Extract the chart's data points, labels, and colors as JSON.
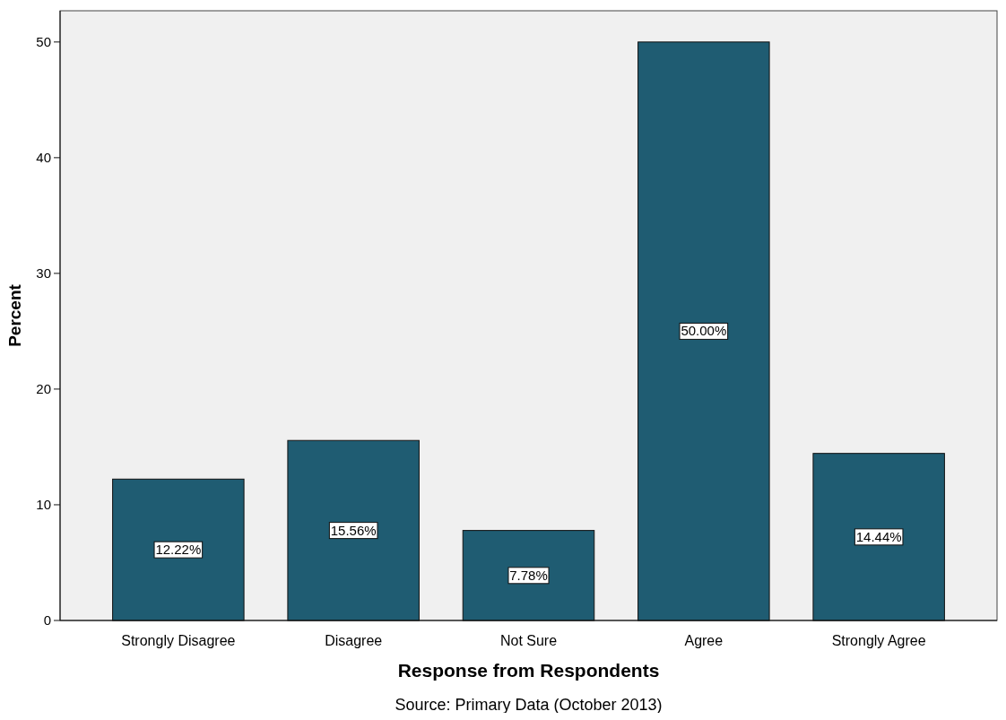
{
  "chart_data": {
    "type": "bar",
    "xlabel": "Response from Respondents",
    "ylabel": "Percent",
    "categories": [
      "Strongly Disagree",
      "Disagree",
      "Not Sure",
      "Agree",
      "Strongly Agree"
    ],
    "values": [
      12.22,
      15.56,
      7.78,
      50.0,
      14.44
    ],
    "value_labels": [
      "12.22%",
      "15.56%",
      "7.78%",
      "50.00%",
      "14.44%"
    ],
    "color": "#1f5c72",
    "ylim": [
      0,
      52.7
    ],
    "yticks": [
      0,
      10,
      20,
      30,
      40,
      50
    ],
    "grid": false,
    "annotations": [
      "Source: Primary Data (October 2013)"
    ]
  }
}
